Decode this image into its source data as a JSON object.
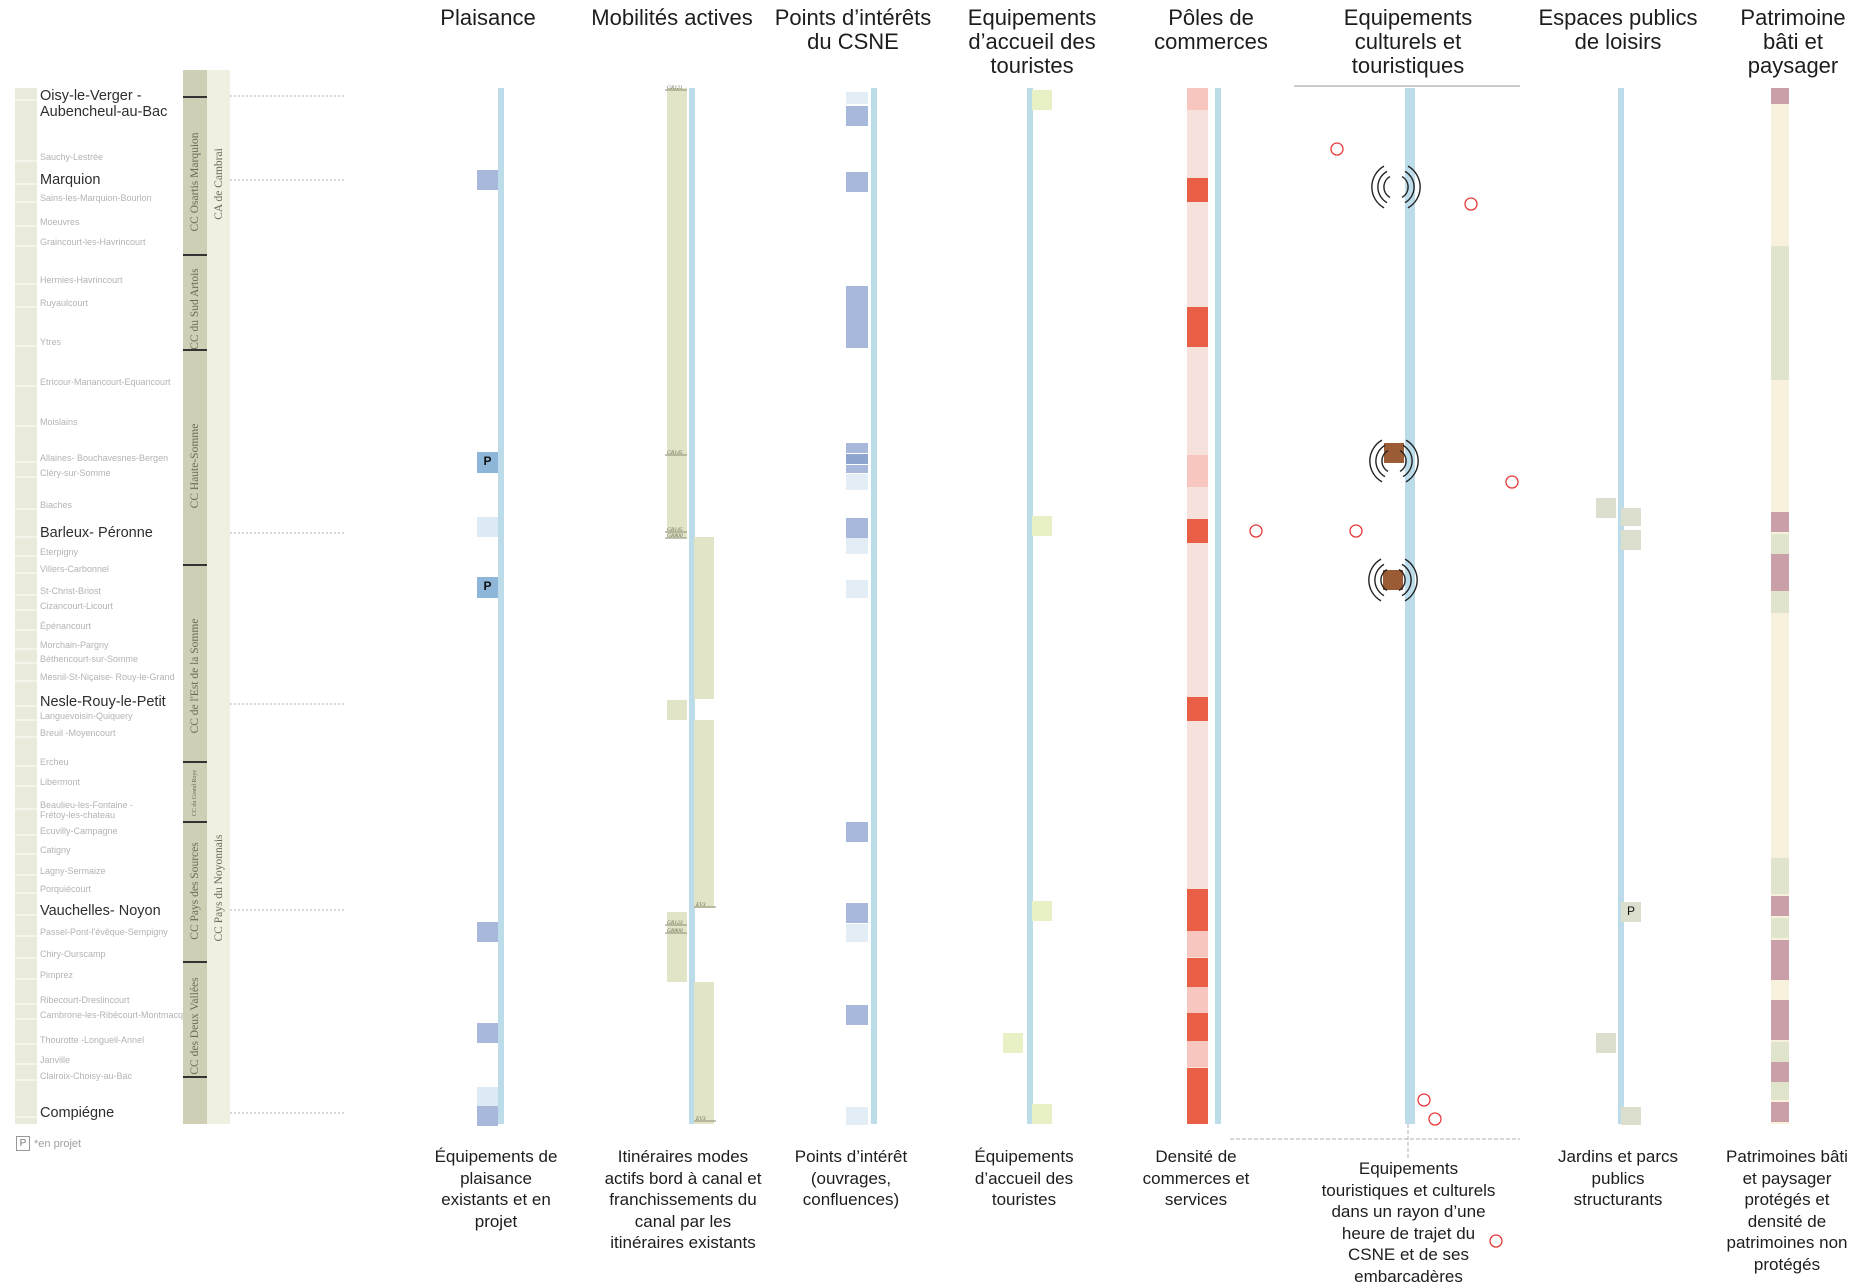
{
  "columns": [
    {
      "id": "plaisance",
      "title": "Plaisance",
      "caption": "Équipements de plaisance existants et en projet"
    },
    {
      "id": "mobilites",
      "title": "Mobilités actives",
      "caption": "Itinéraires modes actifs bord à canal et franchissements du canal par les itinéraires existants"
    },
    {
      "id": "points",
      "title": "Points d’intérêts du CSNE",
      "caption": "Points d’intérêt (ouvrages, confluences)"
    },
    {
      "id": "accueil",
      "title": "Equipements d’accueil des touristes",
      "caption": "Équipements d’accueil des touristes"
    },
    {
      "id": "poles",
      "title": "Pôles de commerces",
      "caption": "Densité de commerces et services"
    },
    {
      "id": "culturels",
      "title": "Equipements culturels et touristiques",
      "caption": "Equipements touristiques et culturels dans un rayon d’une heure de trajet du CSNE et de ses embarcadères"
    },
    {
      "id": "espaces",
      "title": "Espaces publics de loisirs",
      "caption": "Jardins et parcs publics structurants"
    },
    {
      "id": "patrimoine",
      "title": "Patrimoine bâti et paysager",
      "caption": "Patrimoines bâti et paysager protégés et densité de patrimoines non protégés"
    }
  ],
  "towns": [
    {
      "name": "Oisy-le-Verger - Aubencheul-au-Bac",
      "major": true
    },
    {
      "name": "Sauchy-Lestrée",
      "major": false
    },
    {
      "name": "Marquion",
      "major": true
    },
    {
      "name": "Sains-les-Marquion-Bourlon",
      "major": false
    },
    {
      "name": "Moeuvres",
      "major": false
    },
    {
      "name": "Graincourt-les-Havrincourt",
      "major": false
    },
    {
      "name": "Hermies-Havrincourt",
      "major": false
    },
    {
      "name": "Ruyaulcourt",
      "major": false
    },
    {
      "name": "Ytres",
      "major": false
    },
    {
      "name": "Etricour-Manancourt-Equancourt",
      "major": false
    },
    {
      "name": "Moislains",
      "major": false
    },
    {
      "name": "Allaines- Bouchavesnes-Bergen",
      "major": false
    },
    {
      "name": "Cléry-sur-Somme",
      "major": false
    },
    {
      "name": "Biaches",
      "major": false
    },
    {
      "name": "Barleux- Péronne",
      "major": true
    },
    {
      "name": "Eterpigny",
      "major": false
    },
    {
      "name": "Villers-Carbonnel",
      "major": false
    },
    {
      "name": "St-Christ-Briost",
      "major": false
    },
    {
      "name": "Cizancourt-Licourt",
      "major": false
    },
    {
      "name": "Épénancourt",
      "major": false
    },
    {
      "name": "Morchain-Pargny",
      "major": false
    },
    {
      "name": "Béthencourt-sur-Somme",
      "major": false
    },
    {
      "name": "Mesnil-St-Niçaise- Rouy-le-Grand",
      "major": false
    },
    {
      "name": "Nesle-Rouy-le-Petit",
      "major": true
    },
    {
      "name": "Languevoisin-Quiquery",
      "major": false
    },
    {
      "name": "Breuil -Moyencourt",
      "major": false
    },
    {
      "name": "Ercheu",
      "major": false
    },
    {
      "name": "Libermont",
      "major": false
    },
    {
      "name": "Beaulieu-les-Fontaine - Frétoy-les-chateau",
      "major": false
    },
    {
      "name": "Ecuvilly-Campagne",
      "major": false
    },
    {
      "name": "Catigny",
      "major": false
    },
    {
      "name": "Lagny-Sermaize",
      "major": false
    },
    {
      "name": "Porquiécourt",
      "major": false
    },
    {
      "name": "Vauchelles- Noyon",
      "major": true
    },
    {
      "name": "Passel-Pont-l'évêque-Sempigny",
      "major": false
    },
    {
      "name": "Chiry-Ourscamp",
      "major": false
    },
    {
      "name": "Pimprez",
      "major": false
    },
    {
      "name": "Ribecourt-Dreslincourt",
      "major": false
    },
    {
      "name": "Cambrone-les-Ribécourt-Montmacq",
      "major": false
    },
    {
      "name": "Thourotte -Longueil-Annel",
      "major": false
    },
    {
      "name": "Janville",
      "major": false
    },
    {
      "name": "Clairoix-Choisy-au-Bac",
      "major": false
    },
    {
      "name": "Compiégne",
      "major": true
    }
  ],
  "governance": {
    "cc": [
      "CC Osartis Marquion",
      "CC du Sud Artois",
      "CC Haute-Somme",
      "CC de l'Est de la Somme",
      "CC du Grand Roye",
      "CC Pays des Sources",
      "CC des Deux Vallées"
    ],
    "ca": [
      "CA de Cambrai",
      "CC Pays du Noyonnais"
    ]
  },
  "trail_labels": [
    "GR121",
    "GR145",
    "GR145",
    "GR800",
    "EV3",
    "GR123",
    "GR800",
    "EV3"
  ],
  "pin_label": "P",
  "legend": {
    "box": "P",
    "text": "*en projet"
  },
  "colors": {
    "canal": "#bcdcea",
    "plaisance": "#a8b8da",
    "plaisance_light": "#dde9f4",
    "pin": "#8eb6d9",
    "mob": "#e1e4c7",
    "poi_dark": "#a8b8da",
    "poi_light": "#e3edf6",
    "accueil": "#e8f0c6",
    "pole_base": "#f6e1dd",
    "pole_high": "#e85f45",
    "pole_mid": "#f6c6bf",
    "cult": "#9b5c35",
    "ring": "#e53b3b",
    "esp": "#dcdfce",
    "pat_cream": "#f8f1dc",
    "pat_green": "#e0e4cc",
    "pat_rose": "#c9a0a7"
  }
}
